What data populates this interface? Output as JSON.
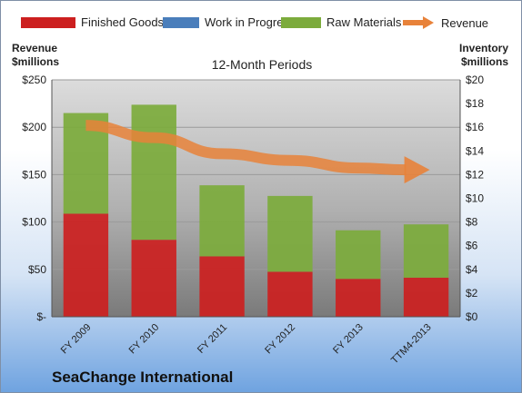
{
  "chart_data": {
    "type": "bar",
    "subtitle": "12-Month Periods",
    "company": "SeaChange International",
    "categories": [
      "FY 2009",
      "FY 2010",
      "FY 2011",
      "FY 2012",
      "FY 2013",
      "TTM4-2013"
    ],
    "y_left": {
      "label_line1": "Revenue",
      "label_line2": "$millions",
      "range": [
        0,
        250
      ],
      "ticks": [
        0,
        50,
        100,
        150,
        200,
        250
      ],
      "tick_labels": [
        "$-",
        "$50",
        "$100",
        "$150",
        "$200",
        "$250"
      ]
    },
    "y_right": {
      "label_line1": "Inventory",
      "label_line2": "$millions",
      "range": [
        0,
        20
      ],
      "ticks": [
        0,
        2,
        4,
        6,
        8,
        10,
        12,
        14,
        16,
        18,
        20
      ],
      "tick_labels": [
        "$0",
        "$2",
        "$4",
        "$6",
        "$8",
        "$10",
        "$12",
        "$14",
        "$16",
        "$18",
        "$20"
      ]
    },
    "legend": [
      "Finished Goods",
      "Work in Progress",
      "Raw Materials",
      "Revenue"
    ],
    "legend_position": "top",
    "series": [
      {
        "name": "Finished Goods",
        "axis": "right",
        "color": "#cc1f1f",
        "values": [
          8.7,
          6.5,
          5.1,
          3.8,
          3.2,
          3.3
        ]
      },
      {
        "name": "Work in Progress",
        "axis": "right",
        "color": "#4a7ebb",
        "values": [
          0,
          0,
          0,
          0,
          0,
          0
        ]
      },
      {
        "name": "Raw Materials",
        "axis": "right",
        "color": "#7cab3c",
        "values": [
          8.5,
          11.4,
          6.0,
          6.4,
          4.1,
          4.5
        ]
      },
      {
        "name": "Revenue",
        "axis": "left",
        "type": "line",
        "color": "#e8823a",
        "values": [
          202,
          189,
          172,
          165,
          157,
          155
        ]
      }
    ],
    "grid": true
  }
}
